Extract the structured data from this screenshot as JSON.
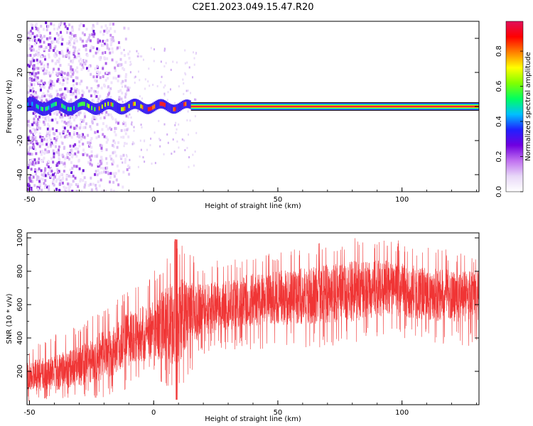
{
  "title": "C2E1.2023.049.15.47.R20",
  "chart_data": [
    {
      "type": "heatmap",
      "xlabel": "Height of straight line (km)",
      "ylabel": "Frequency (Hz)",
      "xlim": [
        -51,
        131
      ],
      "ylim": [
        -50,
        50
      ],
      "xticks": [
        -50,
        0,
        50,
        100
      ],
      "yticks": [
        -40,
        -20,
        0,
        20,
        40
      ],
      "colorbar": {
        "label": "Normalized spectral amplitude",
        "range": [
          0,
          0.97
        ],
        "ticks": [
          0.0,
          0.2,
          0.4,
          0.6,
          0.8
        ],
        "colormap": [
          "#ffffff",
          "#e8d8f8",
          "#c070f0",
          "#7000e0",
          "#2020ff",
          "#00c0ff",
          "#00ff60",
          "#80ff00",
          "#ffff00",
          "#ff8000",
          "#ff0000",
          "#e0105a"
        ]
      },
      "features": {
        "noise_region_x": [
          -51,
          -10
        ],
        "noise_frequency_spread_hz": 50,
        "scatter_region_x": [
          -15,
          17
        ],
        "signal_band_x_start": 15,
        "signal_band_frequency_hz": 0,
        "signal_band_halfwidth_hz": 2.5,
        "signal_band_peak_amplitude": 0.97
      }
    },
    {
      "type": "line",
      "color": "#f03535",
      "xlabel": "Height of straight line (km)",
      "ylabel": "SNR (10 * v/v)",
      "xlim": [
        -51,
        131
      ],
      "ylim": [
        0,
        1030
      ],
      "xticks": [
        -50,
        0,
        50,
        100
      ],
      "yticks": [
        200,
        400,
        600,
        800,
        1000
      ],
      "trend": [
        {
          "x": -51,
          "low": 20,
          "mean": 170,
          "high": 340
        },
        {
          "x": -40,
          "low": 30,
          "mean": 190,
          "high": 420
        },
        {
          "x": -30,
          "low": 40,
          "mean": 230,
          "high": 480
        },
        {
          "x": -20,
          "low": 10,
          "mean": 300,
          "high": 580
        },
        {
          "x": -10,
          "low": 100,
          "mean": 390,
          "high": 700
        },
        {
          "x": 0,
          "low": 180,
          "mean": 450,
          "high": 800
        },
        {
          "x": 9,
          "low": 20,
          "mean": 500,
          "high": 995
        },
        {
          "x": 20,
          "low": 300,
          "mean": 570,
          "high": 850
        },
        {
          "x": 40,
          "low": 330,
          "mean": 630,
          "high": 900
        },
        {
          "x": 60,
          "low": 340,
          "mean": 650,
          "high": 960
        },
        {
          "x": 80,
          "low": 350,
          "mean": 680,
          "high": 1010
        },
        {
          "x": 95,
          "low": 400,
          "mean": 700,
          "high": 1000
        },
        {
          "x": 110,
          "low": 380,
          "mean": 660,
          "high": 950
        },
        {
          "x": 131,
          "low": 330,
          "mean": 650,
          "high": 900
        }
      ]
    }
  ]
}
